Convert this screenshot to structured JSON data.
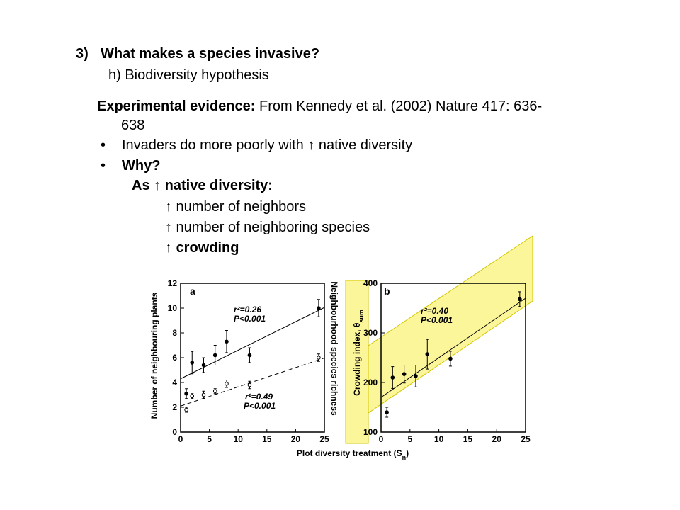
{
  "slide": {
    "heading_number": "3)",
    "heading_text": "What makes a species invasive?",
    "subheading": "h) Biodiversity hypothesis",
    "evidence_label": "Experimental evidence:",
    "evidence_text_1": "From Kennedy et al. (2002) Nature 417: 636-",
    "evidence_text_2": "638",
    "bullet_char": "•",
    "bullet1": "Invaders do more poorly with ↑ native diversity",
    "bullet2": "Why?",
    "as_line": "As ↑ native diversity:",
    "sub1": "↑ number of neighbors",
    "sub2": "↑ number of neighboring species",
    "sub3_arrow": "↑",
    "sub3": "crowding"
  },
  "figure": {
    "x_axis_label": "Plot diversity treatment (S",
    "x_axis_label_sub": "n",
    "x_axis_label_end": ")",
    "colors": {
      "highlight": "#fbf37a",
      "highlight_edge": "#d2c600",
      "ink": "#000000"
    }
  },
  "chart_data": [
    {
      "type": "scatter",
      "panel": "a",
      "ylabel": "Number of neighbouring plants",
      "ylabel2": "Neighbourhood species richness",
      "xlim": [
        0,
        25
      ],
      "ylim": [
        0,
        12
      ],
      "x_ticks": [
        "0",
        "5",
        "10",
        "15",
        "20",
        "25"
      ],
      "y_ticks": [
        "0",
        "2",
        "4",
        "6",
        "8",
        "10",
        "12"
      ],
      "series": [
        {
          "marker": "filled",
          "points": [
            [
              1,
              3.1
            ],
            [
              2,
              5.6
            ],
            [
              4,
              5.4
            ],
            [
              6,
              6.2
            ],
            [
              8,
              7.3
            ],
            [
              12,
              6.2
            ],
            [
              24,
              10.0
            ]
          ],
          "errors": [
            0.4,
            0.9,
            0.6,
            0.8,
            0.9,
            0.6,
            0.7
          ],
          "fit": {
            "intercept": 4.3,
            "slope": 0.23,
            "style": "solid"
          },
          "annotation_r2": "r²=0.26",
          "annotation_p": "P<0.001"
        },
        {
          "marker": "open",
          "points": [
            [
              1,
              1.8
            ],
            [
              2,
              2.9
            ],
            [
              4,
              3.0
            ],
            [
              6,
              3.3
            ],
            [
              8,
              3.9
            ],
            [
              12,
              3.8
            ],
            [
              24,
              6.0
            ]
          ],
          "errors": [
            0.2,
            0.2,
            0.3,
            0.2,
            0.3,
            0.3,
            0.3
          ],
          "fit": {
            "intercept": 2.1,
            "slope": 0.155,
            "style": "dashed"
          },
          "annotation_r2": "r²=0.49",
          "annotation_p": "P<0.001"
        }
      ]
    },
    {
      "type": "scatter",
      "panel": "b",
      "ylabel": "Crowding index, θ",
      "ylabel_sub": "sum",
      "xlim": [
        0,
        25
      ],
      "ylim": [
        100,
        400
      ],
      "x_ticks": [
        "0",
        "5",
        "10",
        "15",
        "20",
        "25"
      ],
      "y_ticks": [
        "100",
        "200",
        "300",
        "400"
      ],
      "series": [
        {
          "marker": "filled",
          "points": [
            [
              1,
              140
            ],
            [
              2,
              210
            ],
            [
              4,
              217
            ],
            [
              6,
              213
            ],
            [
              8,
              257
            ],
            [
              12,
              248
            ],
            [
              24,
              368
            ]
          ],
          "errors": [
            10,
            22,
            18,
            22,
            30,
            15,
            15
          ],
          "fit": {
            "intercept": 170,
            "slope": 8.0,
            "style": "solid"
          },
          "annotation_r2": "r²=0.40",
          "annotation_p": "P<0.001"
        }
      ]
    }
  ]
}
